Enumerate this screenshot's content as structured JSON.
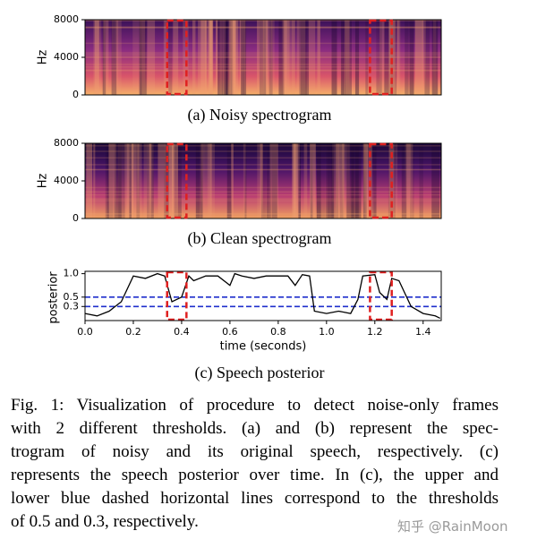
{
  "chart_data": [
    {
      "type": "spectrogram",
      "caption": "(a) Noisy spectrogram",
      "ylabel": "Hz",
      "ylim": [
        0,
        8000
      ],
      "yticks": [
        0,
        4000,
        8000
      ]
    },
    {
      "type": "spectrogram",
      "caption": "(b) Clean spectrogram",
      "ylabel": "Hz",
      "ylim": [
        0,
        8000
      ],
      "yticks": [
        0,
        4000,
        8000
      ]
    },
    {
      "type": "line",
      "caption": "(c) Speech posterior",
      "xlabel": "time (seconds)",
      "ylabel": "posterior",
      "x": [
        0.0,
        0.05,
        0.1,
        0.15,
        0.2,
        0.25,
        0.3,
        0.33,
        0.36,
        0.4,
        0.43,
        0.45,
        0.5,
        0.55,
        0.6,
        0.62,
        0.65,
        0.7,
        0.75,
        0.8,
        0.84,
        0.87,
        0.9,
        0.93,
        0.95,
        1.0,
        1.05,
        1.1,
        1.13,
        1.15,
        1.2,
        1.22,
        1.25,
        1.27,
        1.3,
        1.35,
        1.4,
        1.45,
        1.47
      ],
      "values": [
        0.15,
        0.1,
        0.2,
        0.4,
        0.95,
        0.9,
        1.0,
        0.95,
        0.4,
        0.5,
        0.95,
        0.85,
        0.95,
        0.95,
        0.75,
        1.0,
        0.95,
        0.9,
        0.95,
        0.95,
        0.95,
        0.75,
        0.98,
        0.95,
        0.2,
        0.15,
        0.2,
        0.15,
        0.45,
        0.95,
        0.98,
        0.6,
        0.45,
        0.9,
        0.85,
        0.3,
        0.15,
        0.1,
        0.05
      ],
      "color": "#000000",
      "thresholds": [
        0.5,
        0.3
      ],
      "threshold_color": "#1f2fcc",
      "highlights": [
        [
          0.34,
          0.42
        ],
        [
          1.18,
          1.27
        ]
      ],
      "highlight_color": "#e02020",
      "xlim": [
        0,
        1.475
      ],
      "ylim": [
        0,
        1.05
      ],
      "xticks": [
        {
          "value": 0,
          "label": "0.0"
        },
        0.2,
        0.4,
        0.6,
        0.8,
        {
          "value": 1,
          "label": "1.0"
        },
        1.2,
        1.4
      ],
      "yticks": [
        0.3,
        0.5,
        {
          "value": 1,
          "label": "1.0"
        }
      ]
    }
  ],
  "caption": {
    "lines": [
      "Fig. 1: Visualization of procedure to detect noise-only frames",
      "with 2 different thresholds. (a) and (b) represent the spec-",
      "trogram of noisy and its original speech, respectively. (c)",
      "represents the speech posterior over time. In (c), the upper and",
      "lower blue dashed horizontal lines correspond to the thresholds",
      "of 0.5 and 0.3, respectively."
    ]
  },
  "watermark": "知乎 @RainMoon"
}
